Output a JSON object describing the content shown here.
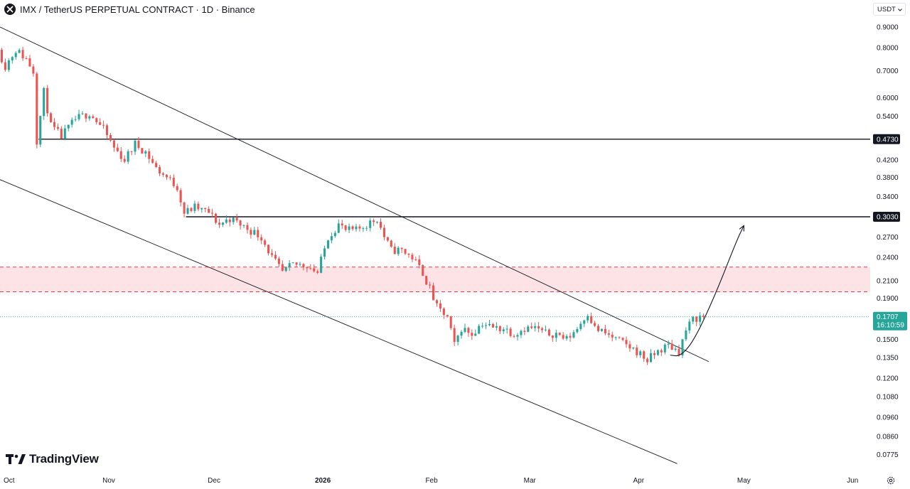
{
  "header": {
    "symbol_title": "IMX / TetherUS PERPETUAL CONTRACT · 1D · Binance",
    "currency": "USDT"
  },
  "branding": {
    "logo_text": "TradingView"
  },
  "chart_data": {
    "type": "candlestick",
    "title": "IMX / TetherUS PERPETUAL CONTRACT · 1D · Binance",
    "y_scale": "log",
    "ylim": [
      0.0745,
      0.93
    ],
    "y_ticks": [
      0.9,
      0.8,
      0.7,
      0.6,
      0.54,
      0.42,
      0.38,
      0.34,
      0.27,
      0.24,
      0.21,
      0.19,
      0.15,
      0.135,
      0.12,
      0.108,
      0.096,
      0.086,
      0.0775
    ],
    "y_tick_labels": [
      "0.9000",
      "0.8000",
      "0.7000",
      "0.6000",
      "0.5400",
      "0.4200",
      "0.3800",
      "0.3400",
      "0.2700",
      "0.2400",
      "0.2100",
      "0.1900",
      "0.1500",
      "0.1350",
      "0.1200",
      "0.1080",
      "0.0960",
      "0.0860",
      "0.0775"
    ],
    "x_range": [
      "2025-10-01",
      "2026-06-06"
    ],
    "x_ticks": [
      {
        "label": "Oct",
        "date": "2025-10-01",
        "bold": false
      },
      {
        "label": "Nov",
        "date": "2025-11-01",
        "bold": false
      },
      {
        "label": "Dec",
        "date": "2025-12-01",
        "bold": false
      },
      {
        "label": "2026",
        "date": "2026-01-01",
        "bold": true
      },
      {
        "label": "Feb",
        "date": "2026-02-01",
        "bold": false
      },
      {
        "label": "Mar",
        "date": "2026-03-01",
        "bold": false
      },
      {
        "label": "Apr",
        "date": "2026-04-01",
        "bold": false
      },
      {
        "label": "May",
        "date": "2026-05-01",
        "bold": false
      },
      {
        "label": "Jun",
        "date": "2026-06-01",
        "bold": false
      }
    ],
    "price_path": [
      [
        "2025-10-01",
        0.79
      ],
      [
        "2025-10-03",
        0.72
      ],
      [
        "2025-10-06",
        0.79
      ],
      [
        "2025-10-09",
        0.75
      ],
      [
        "2025-10-11",
        0.7
      ],
      [
        "2025-10-12",
        0.47
      ],
      [
        "2025-10-14",
        0.62
      ],
      [
        "2025-10-16",
        0.51
      ],
      [
        "2025-10-19",
        0.48
      ],
      [
        "2025-10-23",
        0.53
      ],
      [
        "2025-10-27",
        0.55
      ],
      [
        "2025-10-31",
        0.5
      ],
      [
        "2025-11-03",
        0.45
      ],
      [
        "2025-11-06",
        0.42
      ],
      [
        "2025-11-09",
        0.46
      ],
      [
        "2025-11-12",
        0.44
      ],
      [
        "2025-11-15",
        0.4
      ],
      [
        "2025-11-18",
        0.38
      ],
      [
        "2025-11-21",
        0.36
      ],
      [
        "2025-11-23",
        0.31
      ],
      [
        "2025-11-26",
        0.32
      ],
      [
        "2025-11-30",
        0.31
      ],
      [
        "2025-12-03",
        0.29
      ],
      [
        "2025-12-06",
        0.3
      ],
      [
        "2025-12-09",
        0.29
      ],
      [
        "2025-12-12",
        0.28
      ],
      [
        "2025-12-15",
        0.27
      ],
      [
        "2025-12-18",
        0.24
      ],
      [
        "2025-12-21",
        0.22
      ],
      [
        "2025-12-24",
        0.23
      ],
      [
        "2025-12-28",
        0.23
      ],
      [
        "2025-12-31",
        0.22
      ],
      [
        "2026-01-03",
        0.27
      ],
      [
        "2026-01-06",
        0.29
      ],
      [
        "2026-01-08",
        0.28
      ],
      [
        "2026-01-11",
        0.28
      ],
      [
        "2026-01-14",
        0.29
      ],
      [
        "2026-01-17",
        0.3
      ],
      [
        "2026-01-19",
        0.27
      ],
      [
        "2026-01-21",
        0.25
      ],
      [
        "2026-01-24",
        0.25
      ],
      [
        "2026-01-27",
        0.24
      ],
      [
        "2026-01-30",
        0.22
      ],
      [
        "2026-02-01",
        0.2
      ],
      [
        "2026-02-03",
        0.18
      ],
      [
        "2026-02-06",
        0.17
      ],
      [
        "2026-02-08",
        0.145
      ],
      [
        "2026-02-10",
        0.16
      ],
      [
        "2026-02-13",
        0.155
      ],
      [
        "2026-02-16",
        0.165
      ],
      [
        "2026-02-19",
        0.16
      ],
      [
        "2026-02-22",
        0.16
      ],
      [
        "2026-02-25",
        0.155
      ],
      [
        "2026-02-28",
        0.16
      ],
      [
        "2026-03-03",
        0.16
      ],
      [
        "2026-03-06",
        0.155
      ],
      [
        "2026-03-09",
        0.155
      ],
      [
        "2026-03-12",
        0.15
      ],
      [
        "2026-03-15",
        0.16
      ],
      [
        "2026-03-18",
        0.175
      ],
      [
        "2026-03-20",
        0.16
      ],
      [
        "2026-03-23",
        0.155
      ],
      [
        "2026-03-26",
        0.15
      ],
      [
        "2026-03-29",
        0.145
      ],
      [
        "2026-04-01",
        0.14
      ],
      [
        "2026-04-04",
        0.133
      ],
      [
        "2026-04-07",
        0.14
      ],
      [
        "2026-04-10",
        0.145
      ],
      [
        "2026-04-13",
        0.14
      ],
      [
        "2026-04-15",
        0.158
      ],
      [
        "2026-04-17",
        0.168
      ],
      [
        "2026-04-19",
        0.1707
      ]
    ],
    "horizontal_levels": [
      {
        "price": 0.473,
        "label": "0.4730",
        "from": "2025-10-12"
      },
      {
        "price": 0.303,
        "label": "0.3030",
        "from": "2025-11-23"
      }
    ],
    "resistance_zone": {
      "low": 0.197,
      "high": 0.227
    },
    "current_price": {
      "value": 0.1707,
      "label": "0.1707",
      "countdown": "16:10:59",
      "color": "#26a69a"
    },
    "channel_lines": [
      {
        "start": [
          "2025-10-01",
          0.9
        ],
        "end": [
          "2026-04-21",
          0.132
        ]
      },
      {
        "start": [
          "2025-10-01",
          0.375
        ],
        "end": [
          "2026-04-12",
          0.0735
        ]
      }
    ],
    "projection_path": [
      [
        "2026-04-10",
        0.137
      ],
      [
        "2026-04-13",
        0.136
      ],
      [
        "2026-04-17",
        0.15
      ],
      [
        "2026-04-23",
        0.195
      ],
      [
        "2026-04-29",
        0.265
      ],
      [
        "2026-05-01",
        0.288
      ]
    ],
    "colors": {
      "up": "#26a69a",
      "down": "#ef5350",
      "levels": "#131722",
      "zone": "#f23645"
    }
  }
}
